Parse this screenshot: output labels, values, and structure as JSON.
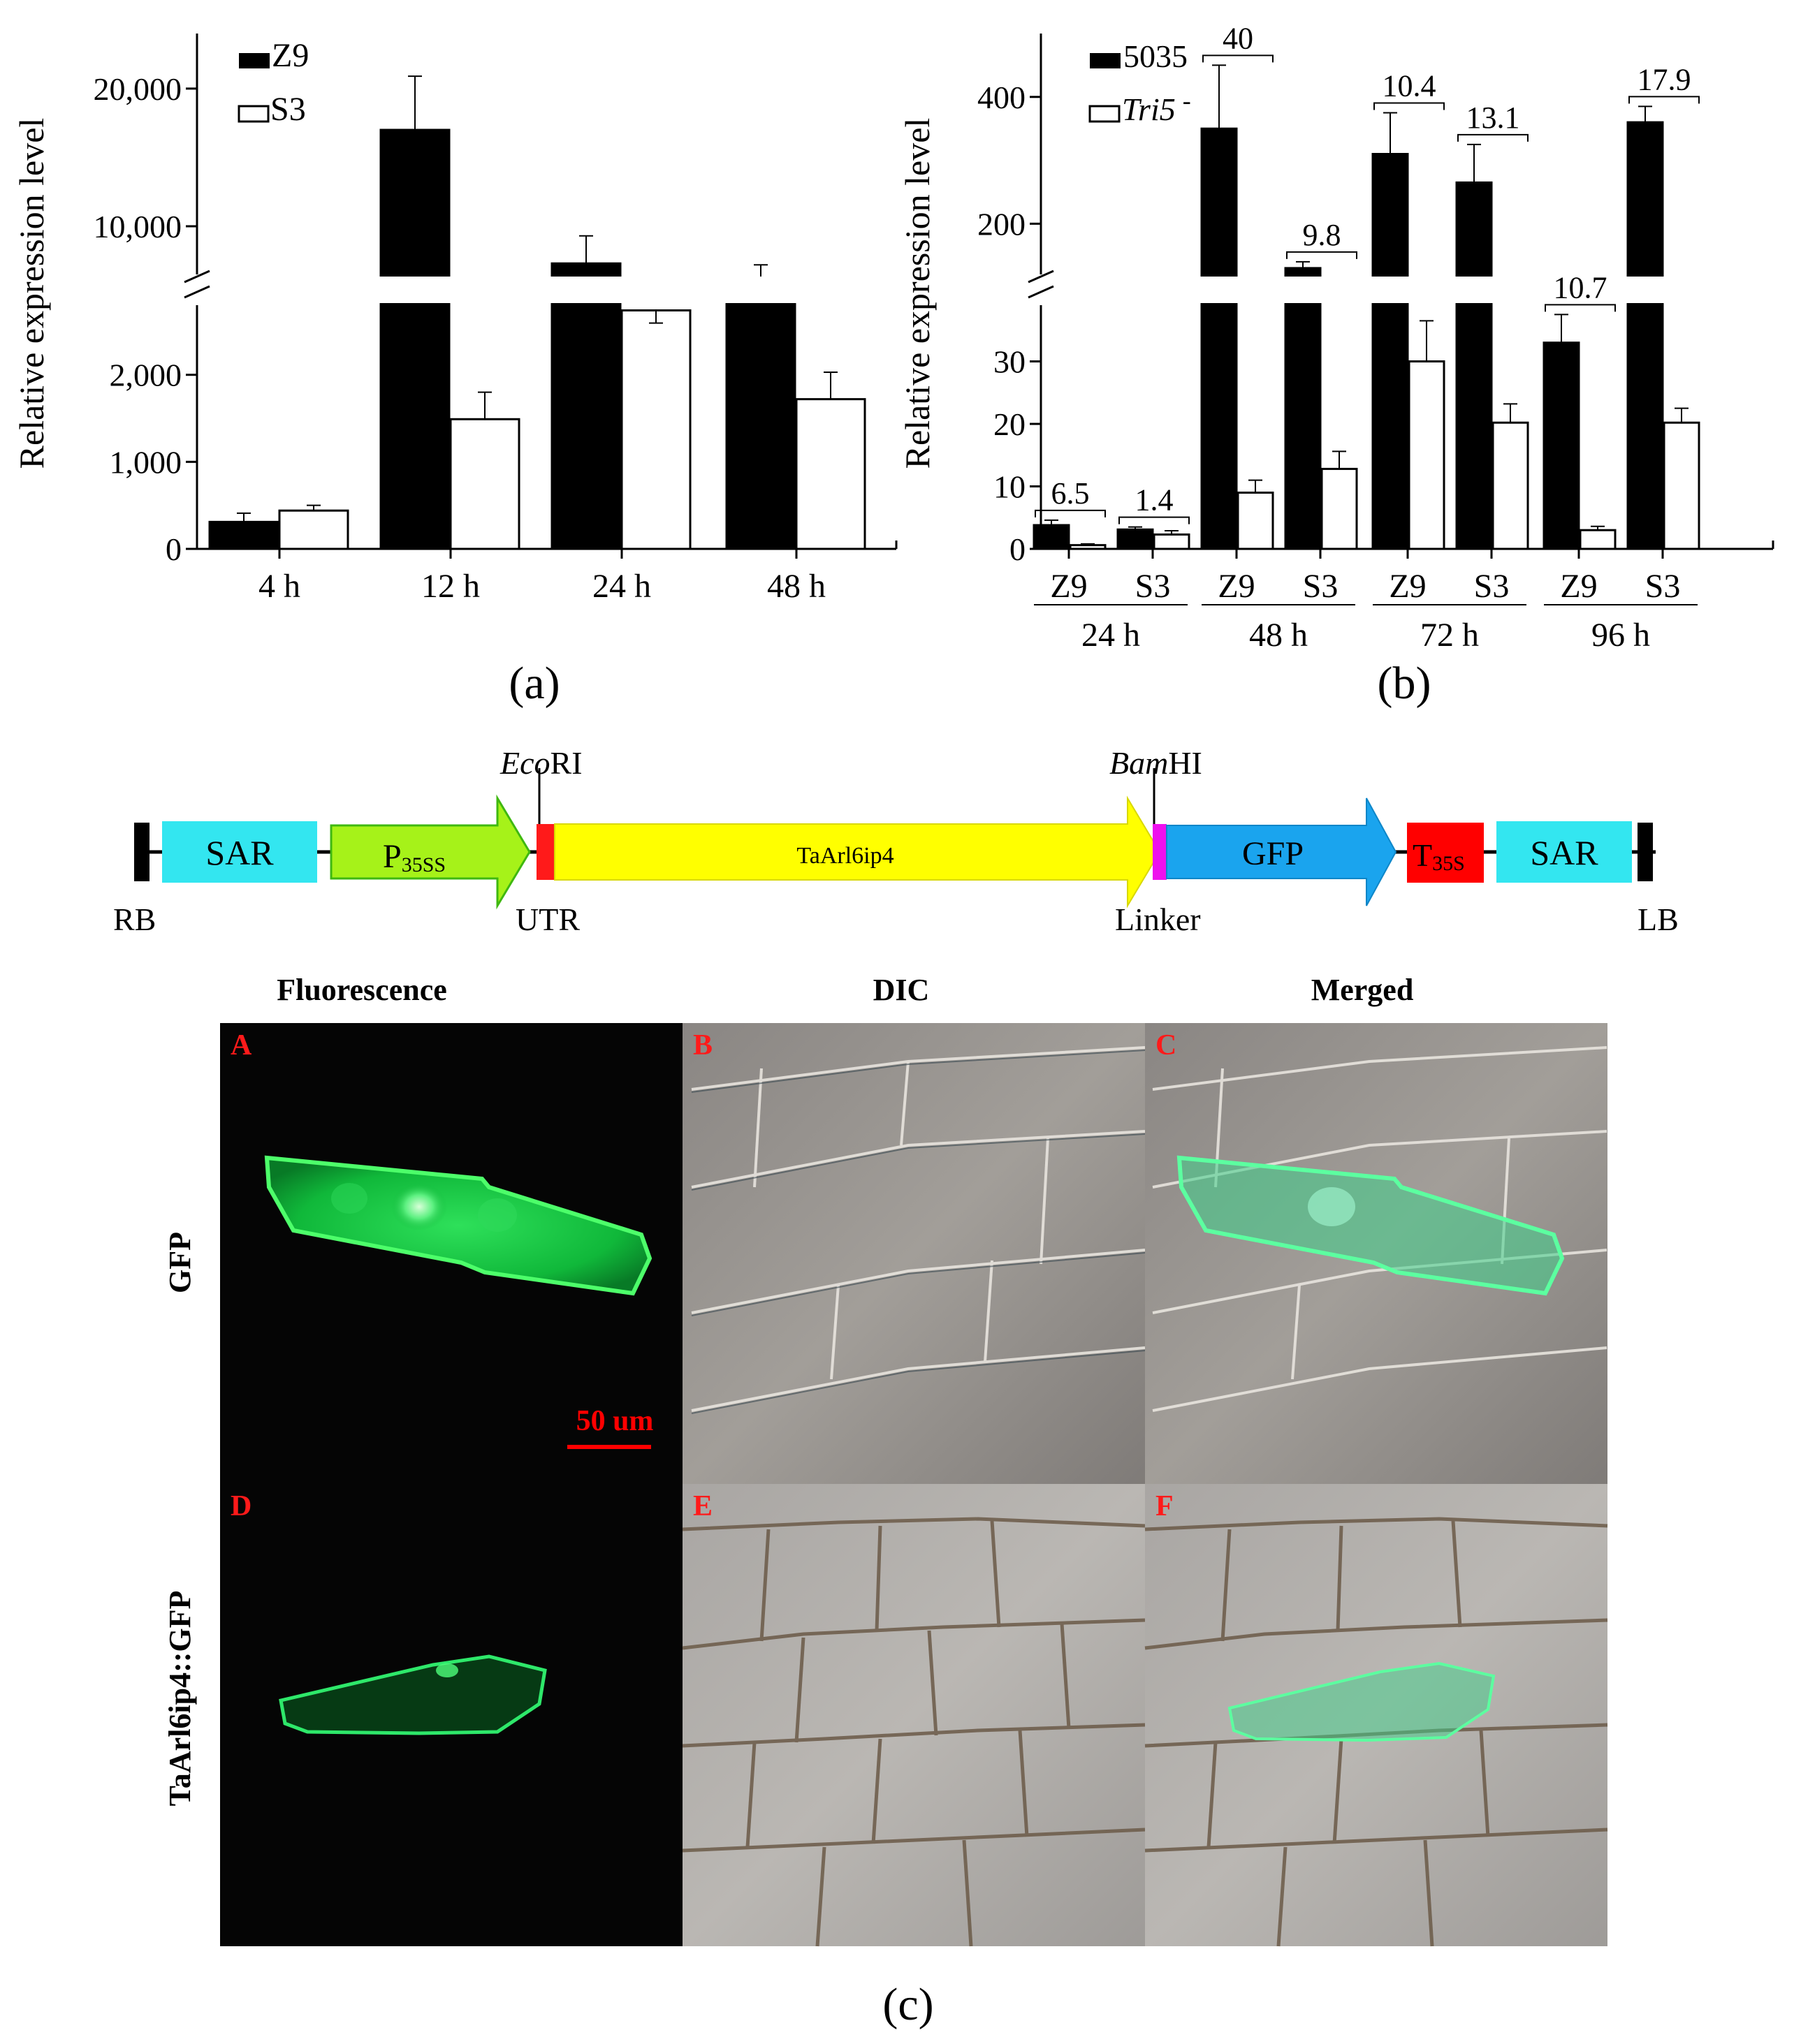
{
  "panel_a": {
    "label": "(a)",
    "ylabel": "Relative expression level",
    "legend": [
      {
        "name": "Z9",
        "color": "#000000"
      },
      {
        "name": "S3",
        "color": "#ffffff"
      }
    ],
    "upper_ticks": [
      10000,
      20000
    ],
    "upper_tick_labels": [
      "10,000",
      "20,000"
    ],
    "lower_ticks": [
      0,
      1000,
      2000
    ],
    "lower_tick_labels": [
      "0",
      "1,000",
      "2,000"
    ],
    "axis_break": {
      "lower_max": 2800,
      "upper_min": 6500,
      "upper_max": 24000
    }
  },
  "panel_b": {
    "label": "(b)",
    "ylabel": "Relative expression level",
    "legend": [
      {
        "name": "5035",
        "color": "#000000"
      },
      {
        "name": "Tri5",
        "suffix": "-",
        "color": "#ffffff"
      }
    ],
    "upper_ticks": [
      200,
      400
    ],
    "upper_tick_labels": [
      "200",
      "400"
    ],
    "lower_ticks": [
      0,
      10,
      20,
      30
    ],
    "lower_tick_labels": [
      "0",
      "10",
      "20",
      "30"
    ],
    "axis_break": {
      "lower_max": 39,
      "upper_min": 120,
      "upper_max": 500
    }
  },
  "chart_data": [
    {
      "type": "bar",
      "categories": [
        "4 h",
        "12 h",
        "24 h",
        "48 h"
      ],
      "ylabel": "Relative expression level",
      "series": [
        {
          "name": "Z9",
          "values": [
            310,
            17000,
            7300,
            5700
          ],
          "errors": [
            100,
            3900,
            2000,
            1500
          ]
        },
        {
          "name": "S3",
          "values": [
            440,
            1490,
            2740,
            1720
          ],
          "errors": [
            60,
            310,
            230,
            310
          ]
        }
      ]
    },
    {
      "type": "bar",
      "categories": [
        "Z9",
        "S3",
        "Z9",
        "S3",
        "Z9",
        "S3",
        "Z9",
        "S3"
      ],
      "groups": [
        "24 h",
        "48 h",
        "72 h",
        "96 h"
      ],
      "ylabel": "Relative expression level",
      "series": [
        {
          "name": "5035",
          "values": [
            3.8,
            3.1,
            350,
            130,
            310,
            265,
            33,
            360
          ],
          "errors": [
            0.8,
            0.4,
            100,
            10,
            65,
            60,
            4.5,
            25
          ]
        },
        {
          "name": "Tri5",
          "values": [
            0.6,
            2.3,
            9.0,
            12.8,
            30,
            20.2,
            3.0,
            20.2
          ],
          "errors": [
            0.2,
            0.6,
            2.0,
            2.8,
            6.5,
            3.0,
            0.6,
            2.3
          ]
        }
      ],
      "annotations": [
        "6.5",
        "1.4",
        "40",
        "9.8",
        "10.4",
        "13.1",
        "10.7",
        "17.9"
      ]
    }
  ],
  "construct": {
    "sites": [
      {
        "italic": "Eco",
        "rest": "RI"
      },
      {
        "italic": "Bam",
        "rest": "HI"
      }
    ],
    "elements": [
      {
        "label": "SAR",
        "color": "#33e6f0"
      },
      {
        "label": "P",
        "sub": "35SS",
        "color": "#a6f219"
      },
      {
        "label": "TaArl6ip4",
        "color": "#ffff00"
      },
      {
        "label": "GFP",
        "color": "#1aa4ee"
      },
      {
        "label": "T",
        "sub": "35S",
        "color": "#ff0000"
      },
      {
        "label": "SAR",
        "color": "#33e6f0"
      }
    ],
    "bottom_labels": [
      "RB",
      "UTR",
      "Linker",
      "LB"
    ]
  },
  "micrographs": {
    "columns": [
      "Fluorescence",
      "DIC",
      "Merged"
    ],
    "rows": [
      "GFP",
      "TaArl6ip4::GFP"
    ],
    "panel_letters": [
      "A",
      "B",
      "C",
      "D",
      "E",
      "F"
    ],
    "scale_bar": "50 um",
    "label": "(c)"
  }
}
